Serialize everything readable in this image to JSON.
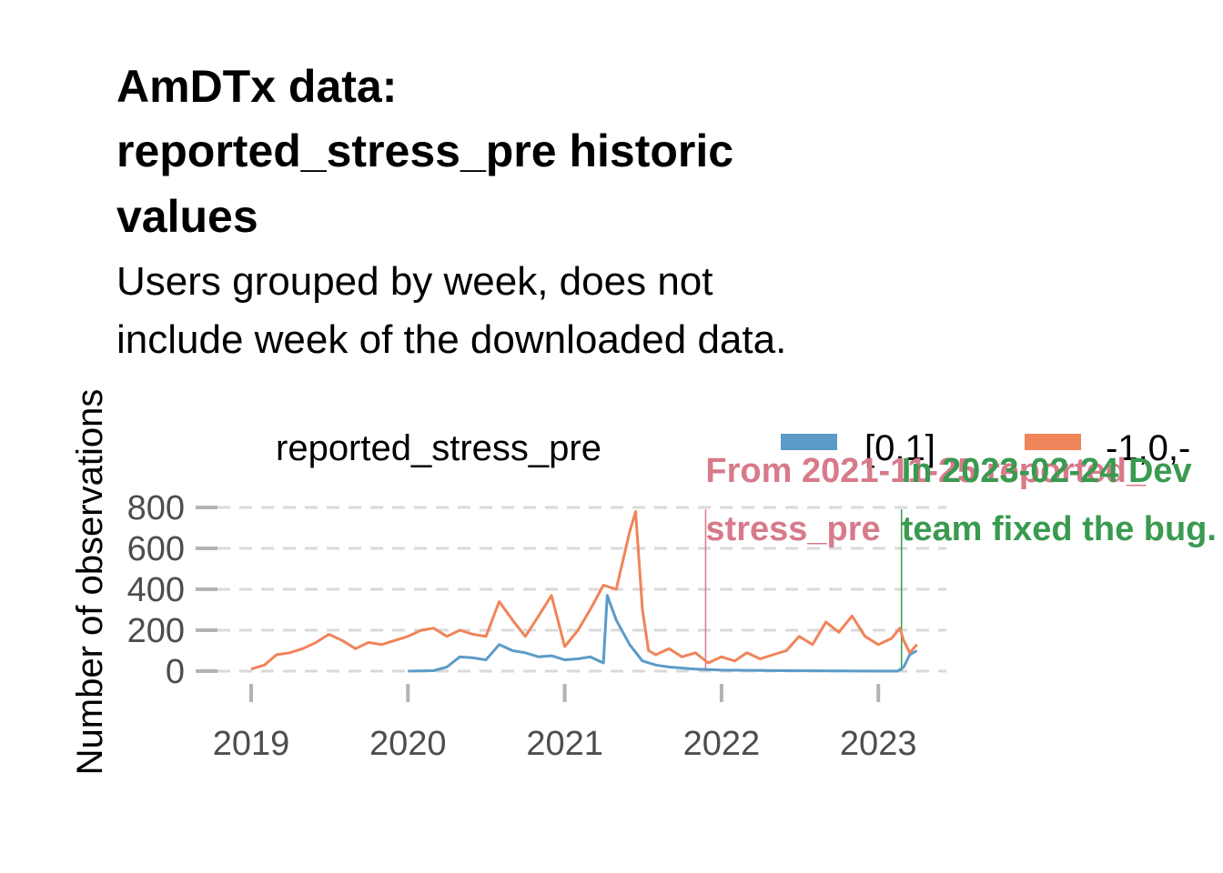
{
  "chart_data": {
    "type": "line",
    "title_lines": [
      "AmDTx data:",
      "reported_stress_pre historic",
      "values"
    ],
    "subtitle_lines": [
      "Users grouped by week, does not",
      "include week of the downloaded data."
    ],
    "xlabel": "",
    "ylabel": "Number of observations",
    "x_ticks": [
      "2019",
      "2020",
      "2021",
      "2022",
      "2023"
    ],
    "y_ticks": [
      "0",
      "200",
      "400",
      "600",
      "800"
    ],
    "xlim": [
      "2018-08-01",
      "2023-07-15"
    ],
    "ylim": [
      0,
      820
    ],
    "grid": "horizontal dashed",
    "legend": {
      "title": "reported_stress_pre",
      "position": "top",
      "entries": [
        {
          "label": "[0,1]",
          "color": "#5b9bc8"
        },
        {
          "label": "-1,0,-",
          "color": "#f0845a"
        }
      ]
    },
    "series": [
      {
        "name": "[0,1]",
        "color": "#5b9bc8",
        "points": [
          [
            "2020-01-01",
            0
          ],
          [
            "2020-03-01",
            2
          ],
          [
            "2020-04-01",
            20
          ],
          [
            "2020-05-01",
            70
          ],
          [
            "2020-06-01",
            65
          ],
          [
            "2020-07-01",
            55
          ],
          [
            "2020-08-01",
            130
          ],
          [
            "2020-09-01",
            100
          ],
          [
            "2020-10-01",
            90
          ],
          [
            "2020-11-01",
            70
          ],
          [
            "2020-12-01",
            75
          ],
          [
            "2021-01-01",
            55
          ],
          [
            "2021-02-01",
            60
          ],
          [
            "2021-03-01",
            70
          ],
          [
            "2021-04-01",
            40
          ],
          [
            "2021-04-10",
            370
          ],
          [
            "2021-05-01",
            250
          ],
          [
            "2021-06-01",
            130
          ],
          [
            "2021-07-01",
            50
          ],
          [
            "2021-08-01",
            30
          ],
          [
            "2021-09-01",
            20
          ],
          [
            "2021-10-01",
            15
          ],
          [
            "2021-11-01",
            10
          ],
          [
            "2022-01-01",
            5
          ],
          [
            "2022-06-01",
            2
          ],
          [
            "2023-01-01",
            0
          ],
          [
            "2023-02-15",
            0
          ],
          [
            "2023-03-01",
            20
          ],
          [
            "2023-03-15",
            80
          ],
          [
            "2023-04-01",
            100
          ]
        ]
      },
      {
        "name": "-1,0,-",
        "color": "#f0845a",
        "points": [
          [
            "2019-01-01",
            10
          ],
          [
            "2019-02-01",
            30
          ],
          [
            "2019-03-01",
            80
          ],
          [
            "2019-04-01",
            90
          ],
          [
            "2019-05-01",
            110
          ],
          [
            "2019-06-01",
            140
          ],
          [
            "2019-07-01",
            180
          ],
          [
            "2019-08-01",
            150
          ],
          [
            "2019-09-01",
            110
          ],
          [
            "2019-10-01",
            140
          ],
          [
            "2019-11-01",
            130
          ],
          [
            "2019-12-01",
            150
          ],
          [
            "2020-01-01",
            170
          ],
          [
            "2020-02-01",
            200
          ],
          [
            "2020-03-01",
            210
          ],
          [
            "2020-04-01",
            170
          ],
          [
            "2020-05-01",
            200
          ],
          [
            "2020-06-01",
            180
          ],
          [
            "2020-07-01",
            170
          ],
          [
            "2020-08-01",
            340
          ],
          [
            "2020-09-01",
            250
          ],
          [
            "2020-10-01",
            170
          ],
          [
            "2020-11-01",
            270
          ],
          [
            "2020-12-01",
            370
          ],
          [
            "2021-01-01",
            120
          ],
          [
            "2021-02-01",
            200
          ],
          [
            "2021-03-01",
            300
          ],
          [
            "2021-04-01",
            420
          ],
          [
            "2021-05-01",
            400
          ],
          [
            "2021-06-01",
            680
          ],
          [
            "2021-06-15",
            780
          ],
          [
            "2021-07-01",
            300
          ],
          [
            "2021-07-15",
            100
          ],
          [
            "2021-08-01",
            80
          ],
          [
            "2021-09-01",
            110
          ],
          [
            "2021-10-01",
            70
          ],
          [
            "2021-11-01",
            90
          ],
          [
            "2021-12-01",
            40
          ],
          [
            "2022-01-01",
            70
          ],
          [
            "2022-02-01",
            50
          ],
          [
            "2022-03-01",
            90
          ],
          [
            "2022-04-01",
            60
          ],
          [
            "2022-05-01",
            80
          ],
          [
            "2022-06-01",
            100
          ],
          [
            "2022-07-01",
            170
          ],
          [
            "2022-08-01",
            130
          ],
          [
            "2022-09-01",
            240
          ],
          [
            "2022-10-01",
            190
          ],
          [
            "2022-11-01",
            270
          ],
          [
            "2022-12-01",
            170
          ],
          [
            "2023-01-01",
            130
          ],
          [
            "2023-02-01",
            160
          ],
          [
            "2023-02-20",
            210
          ],
          [
            "2023-03-01",
            150
          ],
          [
            "2023-03-15",
            90
          ],
          [
            "2023-04-01",
            130
          ]
        ]
      }
    ],
    "annotations": [
      {
        "date": "2021-11-25",
        "color": "#d77a8a",
        "lines": [
          "From 2021-11-25 reported_",
          "stress_pre"
        ]
      },
      {
        "date": "2023-02-24",
        "color": "#3a9a50",
        "lines": [
          "In 2023-02-24 Dev",
          "team fixed the bug."
        ]
      }
    ]
  }
}
